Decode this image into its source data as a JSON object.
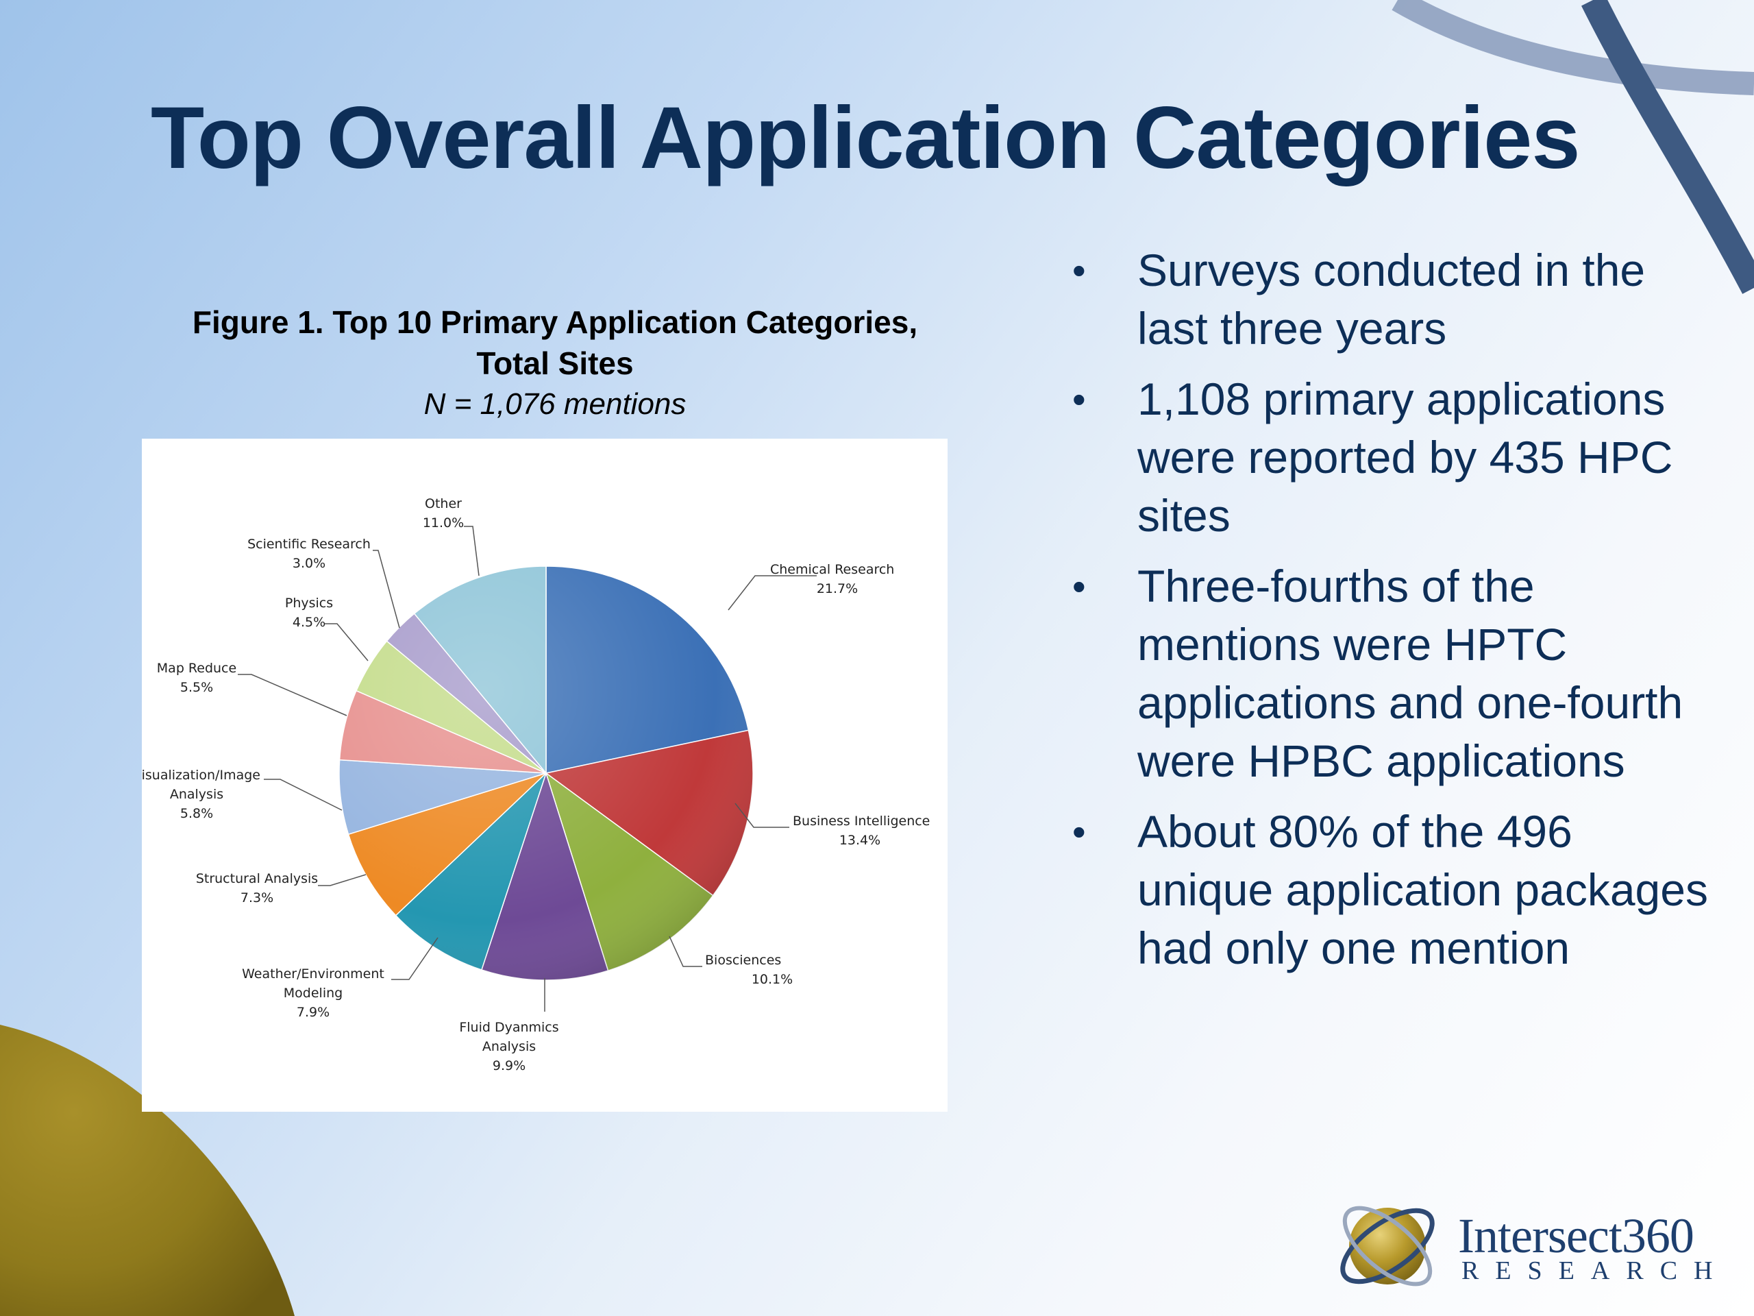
{
  "slide": {
    "title": "Top Overall Application Categories",
    "bullets": [
      "Surveys conducted in the last three years",
      "1,108 primary applications were reported by 435 HPC sites",
      "Three-fourths of the mentions were HPTC applications and one-fourth were HPBC applications",
      "About 80% of the 496 unique application packages had only one mention"
    ],
    "bullet_char": "•"
  },
  "figure": {
    "caption_line1": "Figure 1. Top 10 Primary Application Categories,",
    "caption_line2": "Total Sites",
    "subtitle": "N = 1,076 mentions"
  },
  "logo": {
    "name": "Intersect360",
    "tagline": "RESEARCH"
  },
  "chart_data": {
    "type": "pie",
    "title": "Figure 1. Top 10 Primary Application Categories, Total Sites",
    "subtitle": "N = 1,076 mentions",
    "start": "12 o'clock, clockwise",
    "slices": [
      {
        "label": "Chemical Research",
        "value": 21.7,
        "label_text": "21.7%",
        "color": "#3b70b6"
      },
      {
        "label": "Business Intelligence",
        "value": 13.4,
        "label_text": "13.4%",
        "color": "#c0393a"
      },
      {
        "label": "Biosciences",
        "value": 10.1,
        "label_text": "10.1%",
        "color": "#8fb03e"
      },
      {
        "label": "Fluid Dyanmics Analysis",
        "value": 9.9,
        "label_text": "9.9%",
        "color": "#6e4a96"
      },
      {
        "label": "Weather/Environment Modeling",
        "value": 7.9,
        "label_text": "7.9%",
        "color": "#2497b1"
      },
      {
        "label": "Structural Analysis",
        "value": 7.3,
        "label_text": "7.3%",
        "color": "#ee8a24"
      },
      {
        "label": "Visualization/Image Analysis",
        "value": 5.8,
        "label_text": "5.8%",
        "color": "#96b5e0"
      },
      {
        "label": "Map Reduce",
        "value": 5.5,
        "label_text": "5.5%",
        "color": "#e7908e"
      },
      {
        "label": "Physics",
        "value": 4.5,
        "label_text": "4.5%",
        "color": "#c4dc8a"
      },
      {
        "label": "Scientific Research",
        "value": 3.0,
        "label_text": "3.0%",
        "color": "#a79bcb"
      },
      {
        "label": "Other",
        "value": 11.0,
        "label_text": "11.0%",
        "color": "#8fc5d8"
      }
    ]
  }
}
